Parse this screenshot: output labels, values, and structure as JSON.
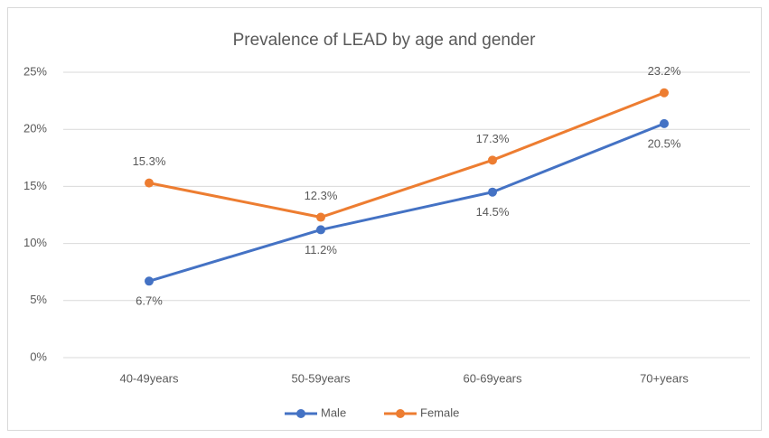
{
  "chart_data": {
    "type": "line",
    "title": "Prevalence of LEAD by age and gender",
    "categories": [
      "40-49years",
      "50-59years",
      "60-69years",
      "70+years"
    ],
    "series": [
      {
        "name": "Male",
        "color": "#4472c4",
        "values": [
          6.7,
          11.2,
          14.5,
          20.5
        ],
        "value_labels": [
          "6.7%",
          "11.2%",
          "14.5%",
          "20.5%"
        ]
      },
      {
        "name": "Female",
        "color": "#ed7d31",
        "values": [
          15.3,
          12.3,
          17.3,
          23.2
        ],
        "value_labels": [
          "15.3%",
          "12.3%",
          "17.3%",
          "23.2%"
        ]
      }
    ],
    "ylim": [
      0,
      25
    ],
    "yticks": [
      {
        "value": 0,
        "label": "0%"
      },
      {
        "value": 5,
        "label": "5%"
      },
      {
        "value": 10,
        "label": "10%"
      },
      {
        "value": 15,
        "label": "15%"
      },
      {
        "value": 20,
        "label": "20%"
      },
      {
        "value": 25,
        "label": "25%"
      }
    ],
    "grid": true,
    "legend": "bottom"
  }
}
